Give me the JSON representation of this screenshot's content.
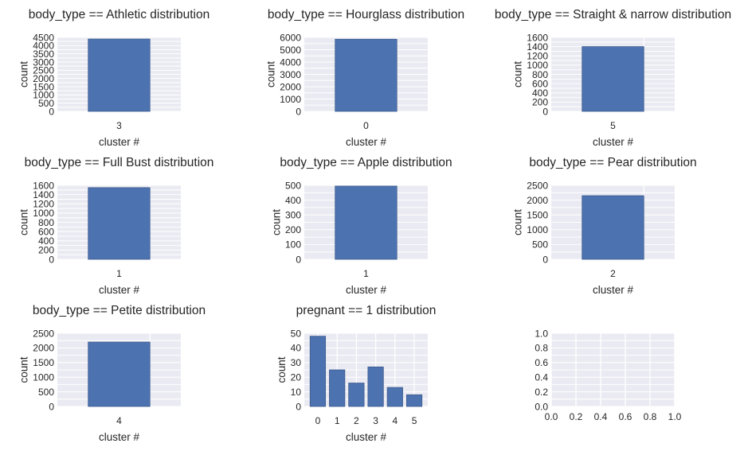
{
  "style": {
    "axes_bg": "#eaeaf2",
    "grid": "#ffffff",
    "bar": "#4c72b0",
    "bar_edge": "#3d5a8c",
    "text": "#262626"
  },
  "chart_data": [
    {
      "type": "bar",
      "title": "body_type == Athletic distribution",
      "xlabel": "cluster #",
      "ylabel": "count",
      "categories": [
        "3"
      ],
      "values": [
        4400
      ],
      "ylim": [
        0,
        4500
      ],
      "yticks": [
        "0",
        "500",
        "1000",
        "1500",
        "2000",
        "2500",
        "3000",
        "3500",
        "4000",
        "4500"
      ],
      "grid": true
    },
    {
      "type": "bar",
      "title": "body_type == Hourglass distribution",
      "xlabel": "cluster #",
      "ylabel": "count",
      "categories": [
        "0"
      ],
      "values": [
        5850
      ],
      "ylim": [
        0,
        6000
      ],
      "yticks": [
        "0",
        "1000",
        "2000",
        "3000",
        "4000",
        "5000",
        "6000"
      ],
      "grid": true
    },
    {
      "type": "bar",
      "title": "body_type == Straight & narrow distribution",
      "xlabel": "cluster #",
      "ylabel": "count",
      "categories": [
        "5"
      ],
      "values": [
        1400
      ],
      "ylim": [
        0,
        1600
      ],
      "yticks": [
        "0",
        "200",
        "400",
        "600",
        "800",
        "1000",
        "1200",
        "1400",
        "1600"
      ],
      "grid": true
    },
    {
      "type": "bar",
      "title": "body_type == Full Bust distribution",
      "xlabel": "cluster #",
      "ylabel": "count",
      "categories": [
        "1"
      ],
      "values": [
        1550
      ],
      "ylim": [
        0,
        1600
      ],
      "yticks": [
        "0",
        "200",
        "400",
        "600",
        "800",
        "1000",
        "1200",
        "1400",
        "1600"
      ],
      "grid": true
    },
    {
      "type": "bar",
      "title": "body_type == Apple distribution",
      "xlabel": "cluster #",
      "ylabel": "count",
      "categories": [
        "1"
      ],
      "values": [
        495
      ],
      "ylim": [
        0,
        500
      ],
      "yticks": [
        "0",
        "100",
        "200",
        "300",
        "400",
        "500"
      ],
      "grid": true
    },
    {
      "type": "bar",
      "title": "body_type == Pear distribution",
      "xlabel": "cluster #",
      "ylabel": "count",
      "categories": [
        "2"
      ],
      "values": [
        2150
      ],
      "ylim": [
        0,
        2500
      ],
      "yticks": [
        "0",
        "500",
        "1000",
        "1500",
        "2000",
        "2500"
      ],
      "grid": true
    },
    {
      "type": "bar",
      "title": "body_type == Petite distribution",
      "xlabel": "cluster #",
      "ylabel": "count",
      "categories": [
        "4"
      ],
      "values": [
        2200
      ],
      "ylim": [
        0,
        2500
      ],
      "yticks": [
        "0",
        "500",
        "1000",
        "1500",
        "2000",
        "2500"
      ],
      "grid": true
    },
    {
      "type": "bar",
      "title": "pregnant == 1 distribution",
      "xlabel": "cluster #",
      "ylabel": "count",
      "categories": [
        "0",
        "1",
        "2",
        "3",
        "4",
        "5"
      ],
      "values": [
        48,
        25,
        16,
        27,
        13,
        8
      ],
      "ylim": [
        0,
        50
      ],
      "yticks": [
        "0",
        "10",
        "20",
        "30",
        "40",
        "50"
      ],
      "grid": true
    },
    {
      "type": "empty",
      "title": "",
      "xlabel": "",
      "ylabel": "",
      "xlim": [
        0,
        1
      ],
      "ylim": [
        0,
        1
      ],
      "xticks": [
        "0.0",
        "0.2",
        "0.4",
        "0.6",
        "0.8",
        "1.0"
      ],
      "yticks": [
        "0.0",
        "0.2",
        "0.4",
        "0.6",
        "0.8",
        "1.0"
      ],
      "grid": true
    }
  ]
}
